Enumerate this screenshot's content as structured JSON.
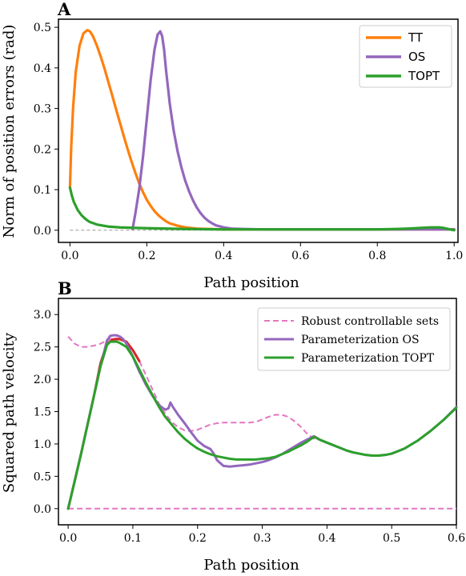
{
  "panels": {
    "A": {
      "label": "A"
    },
    "B": {
      "label": "B"
    }
  },
  "chart_data": [
    {
      "id": "A",
      "type": "line",
      "xlabel": "Path position",
      "ylabel": "Norm of position errors (rad)",
      "xlim": [
        -0.03,
        1.01
      ],
      "ylim": [
        -0.03,
        0.52
      ],
      "xticks": [
        0.0,
        0.2,
        0.4,
        0.6,
        0.8,
        1.0
      ],
      "xtick_labels": [
        "0.0",
        "0.2",
        "0.4",
        "0.6",
        "0.8",
        "1.0"
      ],
      "yticks": [
        0.0,
        0.1,
        0.2,
        0.3,
        0.4,
        0.5
      ],
      "ytick_labels": [
        "0.0",
        "0.1",
        "0.2",
        "0.3",
        "0.4",
        "0.5"
      ],
      "grid": false,
      "legend_position": "top-right",
      "reference_line": {
        "y": 0.0,
        "color": "#999999",
        "style": "dashed"
      },
      "series": [
        {
          "name": "TT",
          "color": "#ff7f0e",
          "x": [
            0.0,
            0.003,
            0.008,
            0.015,
            0.025,
            0.035,
            0.045,
            0.052,
            0.06,
            0.07,
            0.08,
            0.09,
            0.1,
            0.11,
            0.12,
            0.13,
            0.14,
            0.15,
            0.16,
            0.17,
            0.18,
            0.19,
            0.2,
            0.21,
            0.22,
            0.23,
            0.24,
            0.25,
            0.26,
            0.28,
            0.3,
            0.33,
            0.36,
            0.4,
            0.5,
            0.6,
            0.7,
            0.8,
            0.9,
            1.0
          ],
          "y": [
            0.105,
            0.2,
            0.3,
            0.39,
            0.455,
            0.485,
            0.493,
            0.49,
            0.478,
            0.455,
            0.428,
            0.398,
            0.365,
            0.332,
            0.298,
            0.265,
            0.232,
            0.2,
            0.17,
            0.142,
            0.116,
            0.094,
            0.075,
            0.06,
            0.047,
            0.037,
            0.029,
            0.022,
            0.017,
            0.011,
            0.007,
            0.004,
            0.003,
            0.002,
            0.002,
            0.002,
            0.002,
            0.002,
            0.002,
            0.002
          ]
        },
        {
          "name": "OS",
          "color": "#9467bd",
          "x": [
            0.163,
            0.17,
            0.18,
            0.19,
            0.2,
            0.21,
            0.22,
            0.228,
            0.235,
            0.24,
            0.245,
            0.25,
            0.26,
            0.27,
            0.28,
            0.29,
            0.3,
            0.31,
            0.32,
            0.33,
            0.34,
            0.35,
            0.36,
            0.37,
            0.38,
            0.4,
            0.42,
            0.45,
            0.5,
            0.6,
            0.7,
            0.8,
            0.9,
            1.0
          ],
          "y": [
            0.003,
            0.04,
            0.1,
            0.18,
            0.275,
            0.37,
            0.445,
            0.482,
            0.49,
            0.478,
            0.445,
            0.395,
            0.31,
            0.245,
            0.195,
            0.155,
            0.122,
            0.096,
            0.074,
            0.056,
            0.042,
            0.031,
            0.023,
            0.017,
            0.012,
            0.007,
            0.004,
            0.003,
            0.002,
            0.002,
            0.002,
            0.002,
            0.002,
            0.002
          ]
        },
        {
          "name": "TOPT",
          "color": "#2ca02c",
          "x": [
            0.0,
            0.005,
            0.01,
            0.02,
            0.03,
            0.04,
            0.05,
            0.07,
            0.1,
            0.13,
            0.16,
            0.2,
            0.25,
            0.3,
            0.4,
            0.5,
            0.6,
            0.7,
            0.8,
            0.85,
            0.88,
            0.9,
            0.92,
            0.94,
            0.96,
            0.97,
            0.98,
            0.99,
            1.0
          ],
          "y": [
            0.105,
            0.085,
            0.07,
            0.05,
            0.037,
            0.028,
            0.021,
            0.014,
            0.009,
            0.007,
            0.006,
            0.005,
            0.004,
            0.003,
            0.002,
            0.002,
            0.002,
            0.002,
            0.002,
            0.003,
            0.004,
            0.005,
            0.006,
            0.007,
            0.007,
            0.006,
            0.004,
            0.002,
            0.0
          ]
        }
      ]
    },
    {
      "id": "B",
      "type": "line",
      "xlabel": "Path position",
      "ylabel": "Squared path velocity",
      "xlim": [
        -0.015,
        0.6
      ],
      "ylim": [
        -0.25,
        3.25
      ],
      "xticks": [
        0.0,
        0.1,
        0.2,
        0.3,
        0.4,
        0.5,
        0.6
      ],
      "xtick_labels": [
        "0.0",
        "0.1",
        "0.2",
        "0.3",
        "0.4",
        "0.5",
        "0.6"
      ],
      "yticks": [
        0.0,
        0.5,
        1.0,
        1.5,
        2.0,
        2.5,
        3.0
      ],
      "ytick_labels": [
        "0.0",
        "0.5",
        "1.0",
        "1.5",
        "2.0",
        "2.5",
        "3.0"
      ],
      "grid": false,
      "legend_position": "top-right",
      "series": [
        {
          "name": "Robust controllable sets",
          "role": "upper",
          "color": "#e377c2",
          "dashed": true,
          "x": [
            0.0,
            0.01,
            0.02,
            0.03,
            0.04,
            0.05,
            0.06,
            0.07,
            0.08,
            0.09,
            0.1,
            0.11,
            0.12,
            0.13,
            0.14,
            0.15,
            0.16,
            0.17,
            0.18,
            0.19,
            0.2,
            0.21,
            0.22,
            0.23,
            0.24,
            0.25,
            0.26,
            0.27,
            0.28,
            0.29,
            0.3,
            0.31,
            0.32,
            0.33,
            0.34,
            0.35,
            0.36,
            0.37,
            0.38,
            0.39,
            0.4,
            0.41,
            0.42,
            0.43,
            0.44,
            0.45,
            0.46,
            0.47,
            0.48,
            0.49,
            0.5,
            0.52,
            0.54,
            0.56,
            0.58,
            0.6
          ],
          "y": [
            2.66,
            2.55,
            2.5,
            2.5,
            2.52,
            2.55,
            2.6,
            2.64,
            2.63,
            2.58,
            2.45,
            2.28,
            2.07,
            1.85,
            1.63,
            1.47,
            1.34,
            1.26,
            1.21,
            1.2,
            1.22,
            1.26,
            1.3,
            1.32,
            1.33,
            1.33,
            1.33,
            1.33,
            1.33,
            1.34,
            1.38,
            1.42,
            1.45,
            1.45,
            1.42,
            1.35,
            1.26,
            1.15,
            1.08,
            1.06,
            1.02,
            0.98,
            0.94,
            0.9,
            0.87,
            0.85,
            0.83,
            0.82,
            0.82,
            0.83,
            0.85,
            0.93,
            1.05,
            1.2,
            1.37,
            1.55
          ]
        },
        {
          "name": "",
          "role": "lower",
          "color": "#e377c2",
          "dashed": true,
          "x": [
            0.0,
            0.6
          ],
          "y": [
            0.0,
            0.0
          ]
        },
        {
          "name": "",
          "role": "hidden-red",
          "color": "#d62728",
          "dashed": false,
          "x": [
            0.0,
            0.02,
            0.04,
            0.05,
            0.06,
            0.07,
            0.08,
            0.09,
            0.1,
            0.11
          ],
          "y": [
            0.0,
            0.85,
            1.75,
            2.25,
            2.55,
            2.62,
            2.62,
            2.58,
            2.45,
            2.28
          ]
        },
        {
          "name": "Parameterization OS",
          "role": "os",
          "color": "#9467bd",
          "dashed": false,
          "x": [
            0.0,
            0.01,
            0.02,
            0.03,
            0.04,
            0.05,
            0.06,
            0.065,
            0.07,
            0.075,
            0.08,
            0.085,
            0.09,
            0.1,
            0.11,
            0.12,
            0.13,
            0.14,
            0.15,
            0.155,
            0.158,
            0.162,
            0.17,
            0.18,
            0.19,
            0.2,
            0.21,
            0.22,
            0.225,
            0.23,
            0.24,
            0.25,
            0.26,
            0.27,
            0.28,
            0.29,
            0.3,
            0.31,
            0.32,
            0.33,
            0.34,
            0.35,
            0.36,
            0.37,
            0.38,
            0.39,
            0.4,
            0.41,
            0.42,
            0.43,
            0.44,
            0.45,
            0.46,
            0.47,
            0.48,
            0.49,
            0.5,
            0.52,
            0.54,
            0.56,
            0.58,
            0.6
          ],
          "y": [
            0.0,
            0.42,
            0.85,
            1.3,
            1.75,
            2.2,
            2.6,
            2.67,
            2.68,
            2.68,
            2.66,
            2.62,
            2.55,
            2.35,
            2.12,
            1.92,
            1.75,
            1.6,
            1.53,
            1.55,
            1.64,
            1.57,
            1.45,
            1.32,
            1.18,
            1.05,
            0.97,
            0.92,
            0.85,
            0.75,
            0.66,
            0.65,
            0.66,
            0.67,
            0.68,
            0.7,
            0.72,
            0.75,
            0.79,
            0.84,
            0.9,
            0.96,
            1.02,
            1.07,
            1.12,
            1.06,
            1.02,
            0.98,
            0.94,
            0.9,
            0.87,
            0.85,
            0.83,
            0.82,
            0.82,
            0.83,
            0.85,
            0.93,
            1.05,
            1.2,
            1.37,
            1.57
          ]
        },
        {
          "name": "Parameterization TOPT",
          "role": "topt",
          "color": "#2ca02c",
          "dashed": false,
          "x": [
            0.0,
            0.01,
            0.02,
            0.03,
            0.04,
            0.05,
            0.06,
            0.065,
            0.07,
            0.075,
            0.08,
            0.09,
            0.1,
            0.11,
            0.12,
            0.13,
            0.14,
            0.15,
            0.16,
            0.17,
            0.18,
            0.19,
            0.2,
            0.21,
            0.22,
            0.23,
            0.24,
            0.25,
            0.26,
            0.27,
            0.28,
            0.29,
            0.3,
            0.31,
            0.32,
            0.33,
            0.34,
            0.35,
            0.36,
            0.37,
            0.38,
            0.39,
            0.4,
            0.41,
            0.42,
            0.43,
            0.44,
            0.45,
            0.46,
            0.47,
            0.48,
            0.49,
            0.5,
            0.52,
            0.54,
            0.56,
            0.58,
            0.6
          ],
          "y": [
            0.0,
            0.42,
            0.85,
            1.3,
            1.75,
            2.2,
            2.53,
            2.58,
            2.58,
            2.58,
            2.56,
            2.5,
            2.35,
            2.15,
            1.95,
            1.76,
            1.58,
            1.42,
            1.3,
            1.18,
            1.08,
            1.0,
            0.93,
            0.88,
            0.84,
            0.81,
            0.79,
            0.77,
            0.76,
            0.76,
            0.76,
            0.76,
            0.77,
            0.78,
            0.8,
            0.84,
            0.88,
            0.93,
            0.98,
            1.04,
            1.11,
            1.06,
            1.02,
            0.98,
            0.94,
            0.9,
            0.87,
            0.85,
            0.83,
            0.82,
            0.82,
            0.83,
            0.85,
            0.93,
            1.05,
            1.2,
            1.37,
            1.56
          ]
        }
      ]
    }
  ]
}
